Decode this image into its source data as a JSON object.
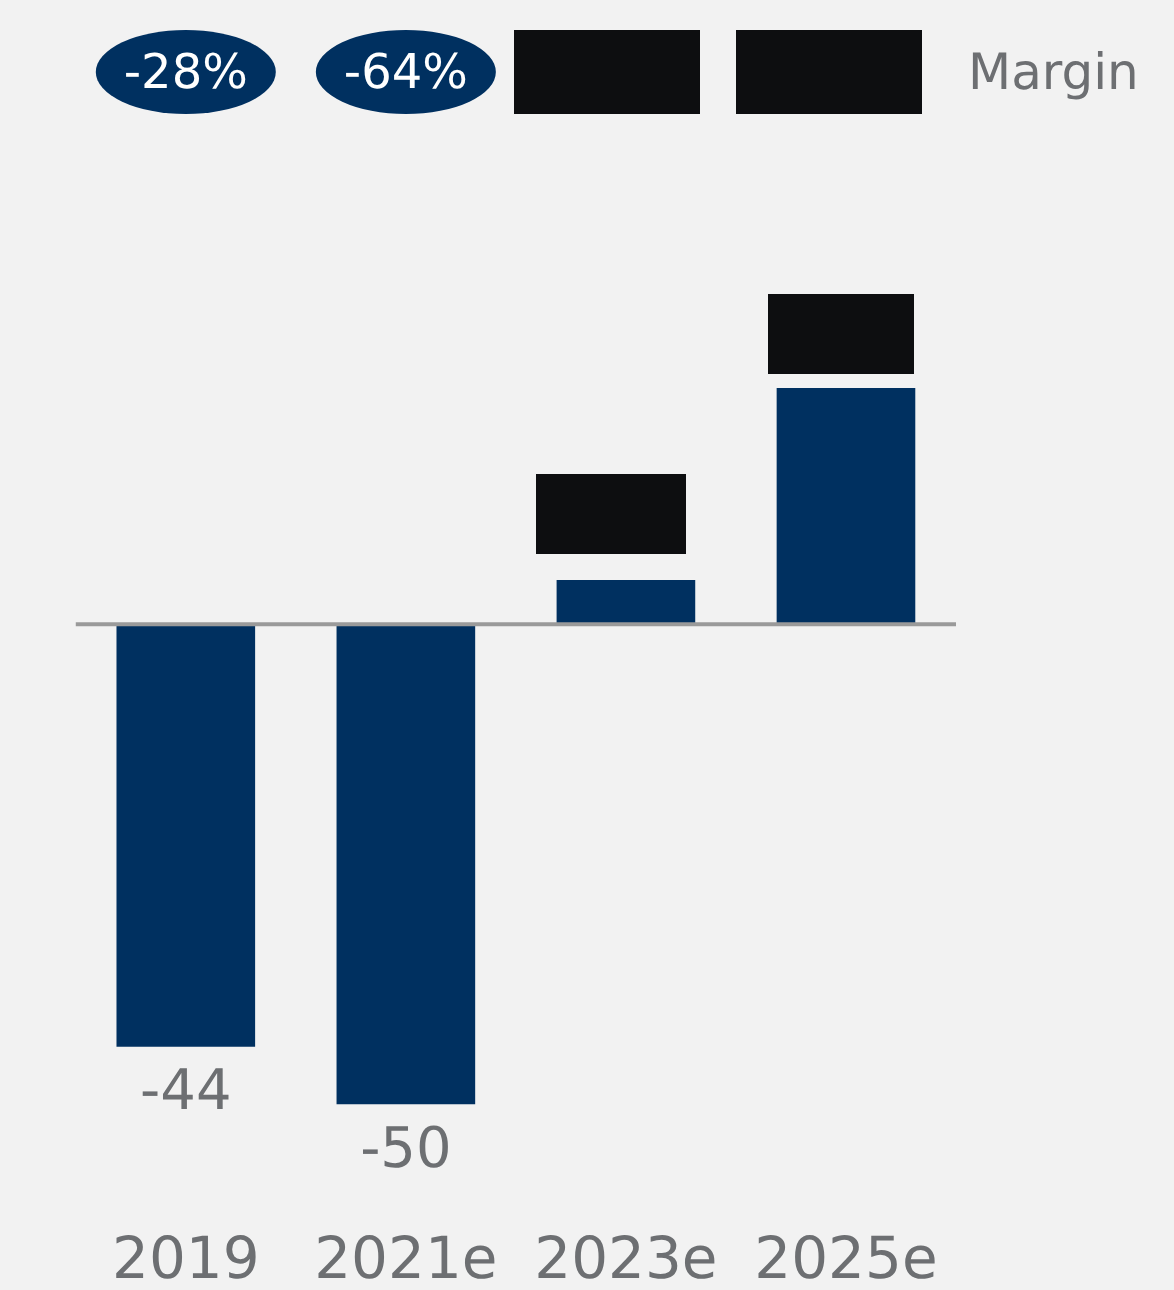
{
  "chart_data": {
    "type": "bar",
    "categories": [
      "2019",
      "2021e",
      "2023e",
      "2025e"
    ],
    "values": [
      -44,
      -50,
      4.6,
      24.6
    ],
    "value_labels": [
      "-44",
      "-50",
      null,
      null
    ],
    "color": "#003060",
    "annotations": [
      "-28%",
      "-64%",
      "Margin"
    ]
  }
}
